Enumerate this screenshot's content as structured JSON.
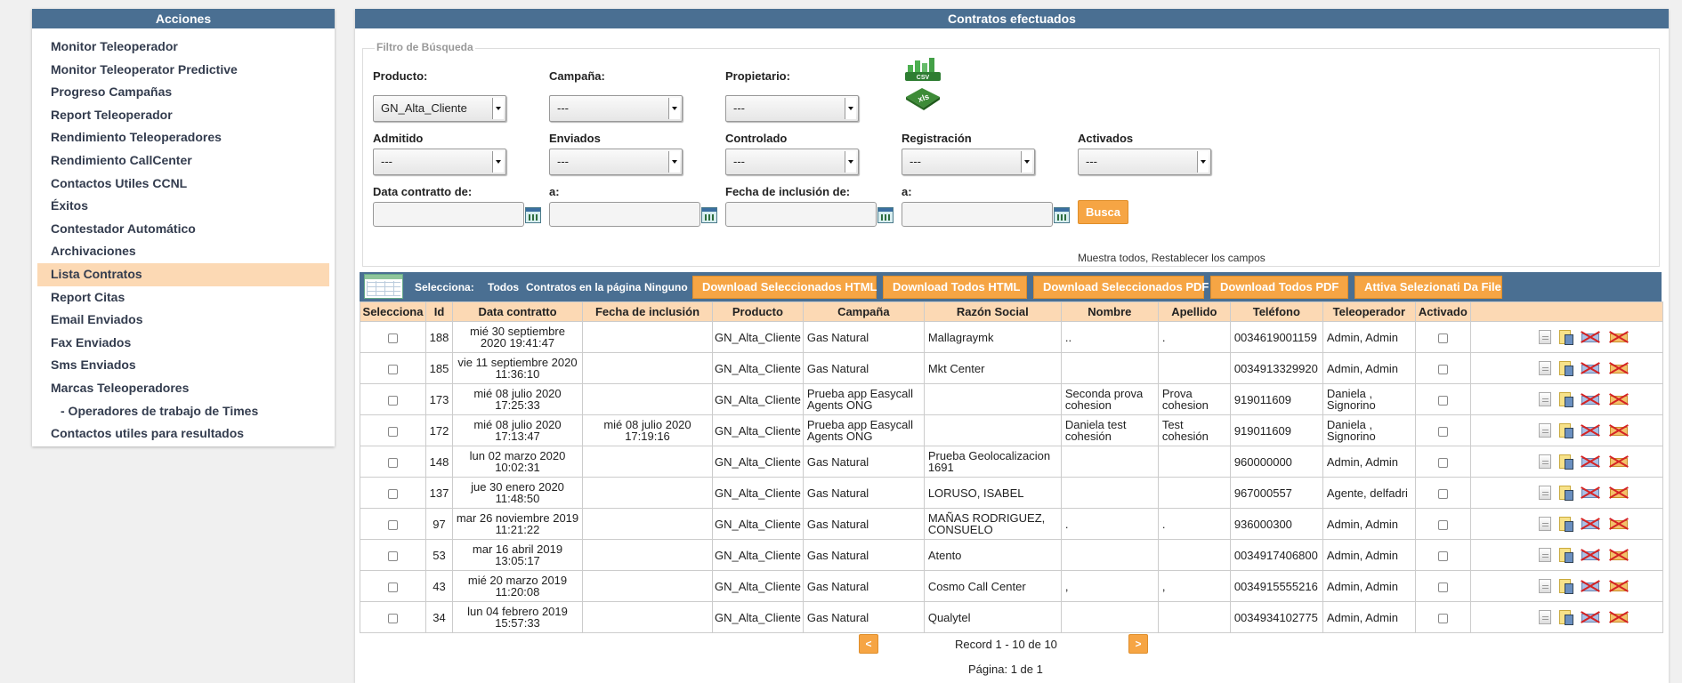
{
  "sidebar": {
    "title": "Acciones",
    "items": [
      {
        "label": "Monitor Teleoperador"
      },
      {
        "label": "Monitor Teleoperator Predictive"
      },
      {
        "label": "Progreso Campañas"
      },
      {
        "label": "Report Teleoperador"
      },
      {
        "label": "Rendimiento Teleoperadores"
      },
      {
        "label": "Rendimiento CallCenter"
      },
      {
        "label": "Contactos Utiles CCNL"
      },
      {
        "label": "Éxitos"
      },
      {
        "label": "Contestador Automático"
      },
      {
        "label": "Archivaciones"
      },
      {
        "label": "Lista Contratos"
      },
      {
        "label": "Report Citas"
      },
      {
        "label": "Email Enviados"
      },
      {
        "label": "Fax Enviados"
      },
      {
        "label": "Sms Enviados"
      },
      {
        "label": "Marcas Teleoperadores"
      },
      {
        "label": "- Operadores de trabajo de Times"
      },
      {
        "label": "Contactos utiles para resultados"
      }
    ],
    "active_index": 10
  },
  "main": {
    "title": "Contratos efectuados",
    "filter": {
      "legend": "Filtro de Búsqueda",
      "producto": {
        "label": "Producto:",
        "value": "GN_Alta_Cliente"
      },
      "campana": {
        "label": "Campaña:",
        "value": "---"
      },
      "propietario": {
        "label": "Propietario:",
        "value": "---"
      },
      "admitido": {
        "label": "Admitido",
        "value": "---"
      },
      "enviados": {
        "label": "Enviados",
        "value": "---"
      },
      "controlado": {
        "label": "Controlado",
        "value": "---"
      },
      "registracion": {
        "label": "Registración",
        "value": "---"
      },
      "activados": {
        "label": "Activados",
        "value": "---"
      },
      "data_contratto_de": {
        "label": "Data contratto de:"
      },
      "data_contratto_a": {
        "label": "a:"
      },
      "fecha_inclusion_de": {
        "label": "Fecha de inclusión de:"
      },
      "fecha_inclusion_a": {
        "label": "a:"
      },
      "search_button": "Busca",
      "show_all": "Muestra todos",
      "separator": ", ",
      "reset": "Restablecer los campos",
      "csv_label": "CSV",
      "xls_label": "xls"
    },
    "toolbar": {
      "selecciona": "Selecciona:",
      "todos": "Todos",
      "en_pagina": "Contratos en la página",
      "ninguno": "Ninguno",
      "buttons": [
        "Download Seleccionados HTML",
        "Download Todos HTML",
        "Download Seleccionados PDF",
        "Download Todos PDF",
        "Attiva Selezionati Da File"
      ]
    },
    "table": {
      "headers": [
        "Selecciona",
        "Id",
        "Data contratto",
        "Fecha de inclusión",
        "Producto",
        "Campaña",
        "Razón Social",
        "Nombre",
        "Apellido",
        "Teléfono",
        "Teleoperador",
        "Activado",
        ""
      ],
      "rows": [
        {
          "id": "188",
          "data1": "mié 30 septiembre",
          "data2": "2020 19:41:47",
          "fi1": "",
          "fi2": "",
          "producto": "GN_Alta_Cliente",
          "campana1": "Gas Natural",
          "campana2": "",
          "razon1": "Mallagraymk",
          "razon2": "",
          "nombre1": "..",
          "nombre2": "",
          "apellido1": ".",
          "apellido2": "",
          "telefono": "0034619001159",
          "tele1": "Admin, Admin",
          "tele2": ""
        },
        {
          "id": "185",
          "data1": "vie 11 septiembre 2020",
          "data2": "11:36:10",
          "fi1": "",
          "fi2": "",
          "producto": "GN_Alta_Cliente",
          "campana1": "Gas Natural",
          "campana2": "",
          "razon1": "Mkt Center",
          "razon2": "",
          "nombre1": "",
          "nombre2": "",
          "apellido1": "",
          "apellido2": "",
          "telefono": "0034913329920",
          "tele1": "Admin, Admin",
          "tele2": ""
        },
        {
          "id": "173",
          "data1": "mié 08 julio 2020",
          "data2": "17:25:33",
          "fi1": "",
          "fi2": "",
          "producto": "GN_Alta_Cliente",
          "campana1": "Prueba app Easycall",
          "campana2": "Agents ONG",
          "razon1": "",
          "razon2": "",
          "nombre1": "Seconda prova",
          "nombre2": "cohesion",
          "apellido1": "Prova",
          "apellido2": "cohesion",
          "telefono": "919011609",
          "tele1": "Daniela ,",
          "tele2": "Signorino"
        },
        {
          "id": "172",
          "data1": "mié 08 julio 2020",
          "data2": "17:13:47",
          "fi1": "mié 08 julio 2020",
          "fi2": "17:19:16",
          "producto": "GN_Alta_Cliente",
          "campana1": "Prueba app Easycall",
          "campana2": "Agents ONG",
          "razon1": "",
          "razon2": "",
          "nombre1": "Daniela test",
          "nombre2": "cohesión",
          "apellido1": "Test",
          "apellido2": "cohesión",
          "telefono": "919011609",
          "tele1": "Daniela ,",
          "tele2": "Signorino"
        },
        {
          "id": "148",
          "data1": "lun 02 marzo 2020",
          "data2": "10:02:31",
          "fi1": "",
          "fi2": "",
          "producto": "GN_Alta_Cliente",
          "campana1": "Gas Natural",
          "campana2": "",
          "razon1": "Prueba Geolocalizacion",
          "razon2": "1691",
          "nombre1": "",
          "nombre2": "",
          "apellido1": "",
          "apellido2": "",
          "telefono": "960000000",
          "tele1": "Admin, Admin",
          "tele2": ""
        },
        {
          "id": "137",
          "data1": "jue 30 enero 2020",
          "data2": "11:48:50",
          "fi1": "",
          "fi2": "",
          "producto": "GN_Alta_Cliente",
          "campana1": "Gas Natural",
          "campana2": "",
          "razon1": "LORUSO, ISABEL",
          "razon2": "",
          "nombre1": "",
          "nombre2": "",
          "apellido1": "",
          "apellido2": "",
          "telefono": "967000557",
          "tele1": "Agente, delfadri",
          "tele2": ""
        },
        {
          "id": "97",
          "data1": "mar 26 noviembre 2019",
          "data2": "11:21:22",
          "fi1": "",
          "fi2": "",
          "producto": "GN_Alta_Cliente",
          "campana1": "Gas Natural",
          "campana2": "",
          "razon1": "MAÑAS RODRIGUEZ,",
          "razon2": "CONSUELO",
          "nombre1": ".",
          "nombre2": "",
          "apellido1": ".",
          "apellido2": "",
          "telefono": "936000300",
          "tele1": "Admin, Admin",
          "tele2": ""
        },
        {
          "id": "53",
          "data1": "mar 16 abril 2019",
          "data2": "13:05:17",
          "fi1": "",
          "fi2": "",
          "producto": "GN_Alta_Cliente",
          "campana1": "Gas Natural",
          "campana2": "",
          "razon1": "Atento",
          "razon2": "",
          "nombre1": "",
          "nombre2": "",
          "apellido1": "",
          "apellido2": "",
          "telefono": "0034917406800",
          "tele1": "Admin, Admin",
          "tele2": ""
        },
        {
          "id": "43",
          "data1": "mié 20 marzo 2019",
          "data2": "11:20:08",
          "fi1": "",
          "fi2": "",
          "producto": "GN_Alta_Cliente",
          "campana1": "Gas Natural",
          "campana2": "",
          "razon1": "Cosmo Call Center",
          "razon2": "",
          "nombre1": ",",
          "nombre2": "",
          "apellido1": ",",
          "apellido2": "",
          "telefono": "0034915555216",
          "tele1": "Admin, Admin",
          "tele2": ""
        },
        {
          "id": "34",
          "data1": "lun 04 febrero 2019",
          "data2": "15:57:33",
          "fi1": "",
          "fi2": "",
          "producto": "GN_Alta_Cliente",
          "campana1": "Gas Natural",
          "campana2": "",
          "razon1": "Qualytel",
          "razon2": "",
          "nombre1": "",
          "nombre2": "",
          "apellido1": "",
          "apellido2": "",
          "telefono": "0034934102775",
          "tele1": "Admin, Admin",
          "tele2": ""
        }
      ]
    },
    "pagination": {
      "prev": "<",
      "next": ">",
      "record": "Record 1 - 10 de 10",
      "page": "Página: 1 de 1"
    }
  },
  "colors": {
    "header_bg": "#4a6f92",
    "accent_orange": "#f6a544",
    "highlight": "#fcd9b4"
  }
}
